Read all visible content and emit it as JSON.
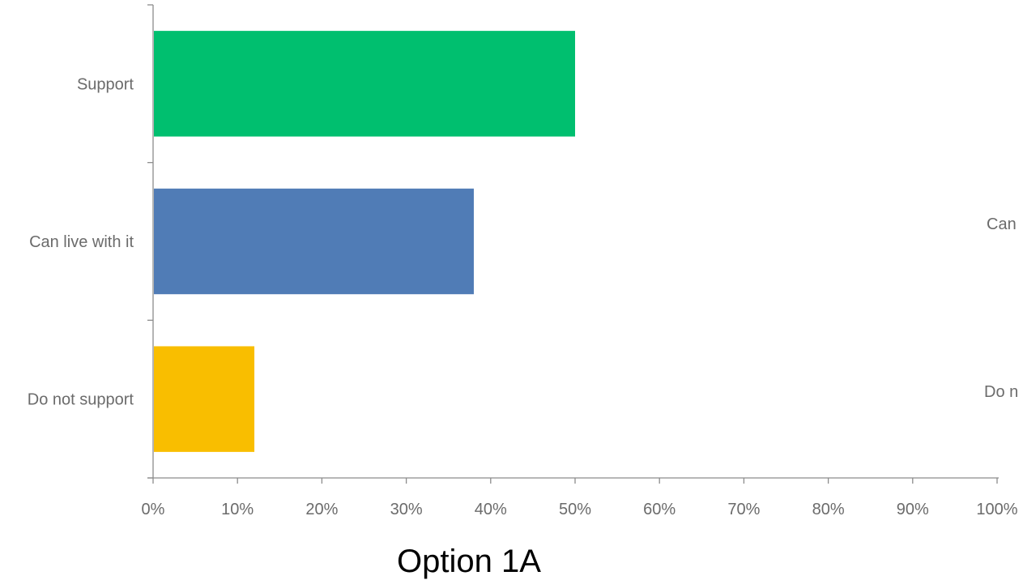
{
  "chart_data": {
    "type": "bar",
    "orientation": "horizontal",
    "title": "Option 1A",
    "xlabel": "",
    "ylabel": "",
    "categories": [
      "Support",
      "Can live with it",
      "Do not support"
    ],
    "values": [
      50,
      38,
      12
    ],
    "value_unit": "%",
    "xlim": [
      0,
      100
    ],
    "x_ticks": [
      "0%",
      "10%",
      "20%",
      "30%",
      "40%",
      "50%",
      "60%",
      "70%",
      "80%",
      "90%",
      "100%"
    ],
    "bar_colors": [
      "#00BF6F",
      "#507CB6",
      "#F9BE00"
    ],
    "grid": false,
    "legend": "none",
    "clipped_labels": [
      "Can",
      "Do n"
    ]
  }
}
